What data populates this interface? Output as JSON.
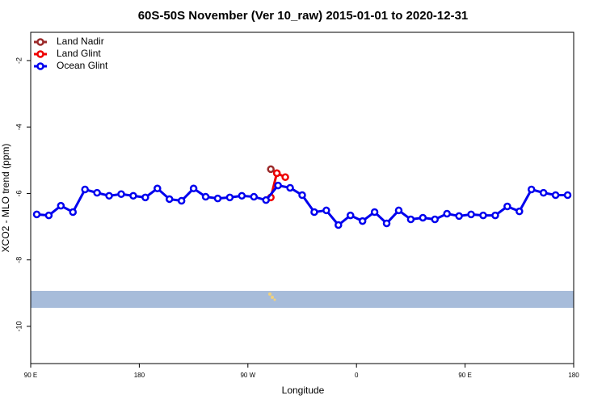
{
  "chart_data": {
    "type": "line",
    "title": "60S-50S November (Ver 10_raw)   2015-01-01 to 2020-12-31",
    "x_label": "Longitude",
    "y_label": "XCO2 - MLO trend (ppm)",
    "xlim": [
      90,
      540
    ],
    "ylim": [
      -11.12,
      -1.15
    ],
    "xticks": [
      {
        "value": 90,
        "label": "90 E"
      },
      {
        "value": 180,
        "label": "180"
      },
      {
        "value": 270,
        "label": "90 W"
      },
      {
        "value": 360,
        "label": "0"
      },
      {
        "value": 450,
        "label": "90 E"
      },
      {
        "value": 540,
        "label": "180"
      }
    ],
    "yticks": [
      -10,
      -8,
      -6,
      -4,
      -2
    ],
    "legend": "top-left",
    "series": [
      {
        "name": "Land Nadir",
        "color": "#9b2a2a",
        "x": [
          289,
          294
        ],
        "values": [
          -5.27,
          -5.39
        ]
      },
      {
        "name": "Land Glint",
        "color": "#ee0000",
        "x": [
          289,
          294,
          301
        ],
        "values": [
          -6.12,
          -5.39,
          -5.51
        ]
      },
      {
        "name": "Ocean Glint",
        "color": "#0000ee",
        "x": [
          95,
          105,
          115,
          125,
          135,
          145,
          155,
          165,
          175,
          185,
          195,
          205,
          215,
          225,
          235,
          245,
          255,
          265,
          275,
          285,
          295,
          305,
          315,
          325,
          335,
          345,
          355,
          365,
          375,
          385,
          395,
          405,
          415,
          425,
          435,
          445,
          455,
          465,
          475,
          485,
          495,
          505,
          515,
          525,
          535
        ],
        "values": [
          -6.63,
          -6.66,
          -6.37,
          -6.56,
          -5.88,
          -5.98,
          -6.07,
          -6.02,
          -6.07,
          -6.12,
          -5.85,
          -6.17,
          -6.22,
          -5.85,
          -6.1,
          -6.15,
          -6.12,
          -6.07,
          -6.1,
          -6.2,
          -5.76,
          -5.83,
          -6.05,
          -6.56,
          -6.51,
          -6.95,
          -6.66,
          -6.83,
          -6.56,
          -6.9,
          -6.51,
          -6.78,
          -6.73,
          -6.78,
          -6.61,
          -6.68,
          -6.63,
          -6.66,
          -6.66,
          -6.39,
          -6.54,
          -5.88,
          -5.98,
          -6.05,
          -6.05
        ]
      }
    ]
  }
}
